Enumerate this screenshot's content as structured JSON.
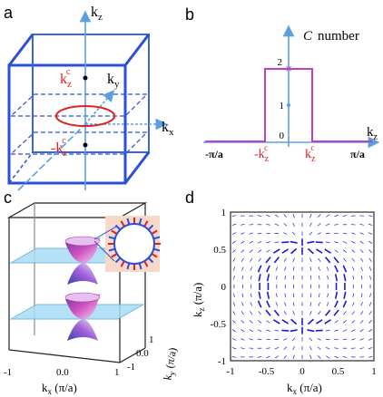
{
  "panels": {
    "a": {
      "label": "a",
      "axes": {
        "kz": "k",
        "kz_sub": "z",
        "ky": "k",
        "ky_sub": "y",
        "kx": "k",
        "kx_sub": "x"
      },
      "kzc_top": {
        "main": "k",
        "sub": "z",
        "sup": "c"
      },
      "kzc_bottom": {
        "main": "-k",
        "sub": "z",
        "sup": "c"
      }
    },
    "b": {
      "label": "b",
      "c_symbol": "C",
      "c_word": "number",
      "xaxis_label": {
        "main": "k",
        "sub": "z"
      },
      "x_ticks": {
        "left": "-π/a",
        "neg_kzc": {
          "main": "-k",
          "sub": "z",
          "sup": "c"
        },
        "pos_kzc": {
          "main": "k",
          "sub": "z",
          "sup": "c"
        },
        "right": "π/a"
      },
      "y_ticks": [
        "0",
        "1",
        "2"
      ]
    },
    "c": {
      "label": "c",
      "x_ticks": [
        "-1",
        "0.0",
        "1"
      ],
      "y_ticks": [
        "-1",
        "0.0",
        "1"
      ],
      "xlabel": {
        "main": "k",
        "sub": "x",
        "unit": " (π/a)"
      },
      "ylabel": {
        "main": "k",
        "sub": "y",
        "unit": " (π/a)"
      }
    },
    "d": {
      "label": "d",
      "xlabel": {
        "main": "k",
        "sub": "x",
        "unit": " (π/a)"
      },
      "ylabel": {
        "main": "k",
        "sub": "z",
        "unit": " (π/a)"
      },
      "x_ticks": [
        "-1",
        "-0.5",
        "0",
        "0.5",
        "1"
      ],
      "y_ticks": [
        "1",
        "0.5",
        "0",
        "-0.5",
        "-1"
      ]
    }
  },
  "chart_data": [
    {
      "type": "line",
      "panel": "b",
      "series": [
        {
          "x": [
            "-π/a",
            "-kzc",
            "-kzc",
            "kzc",
            "kzc",
            "π/a"
          ],
          "values": [
            0,
            0,
            2,
            2,
            0,
            0
          ]
        }
      ],
      "ylim": [
        0,
        2
      ]
    },
    {
      "type": "scatter",
      "panel": "d",
      "description_free": true,
      "xlim": [
        -1,
        1
      ],
      "ylim": [
        -1,
        1
      ]
    }
  ],
  "colors": {
    "cube": "#2b4fd6",
    "axis": "#4a90d9",
    "red": "#e02020",
    "purple": "#c040c0",
    "vector": "#1a1ad8",
    "plane": "#8fd0f0"
  }
}
